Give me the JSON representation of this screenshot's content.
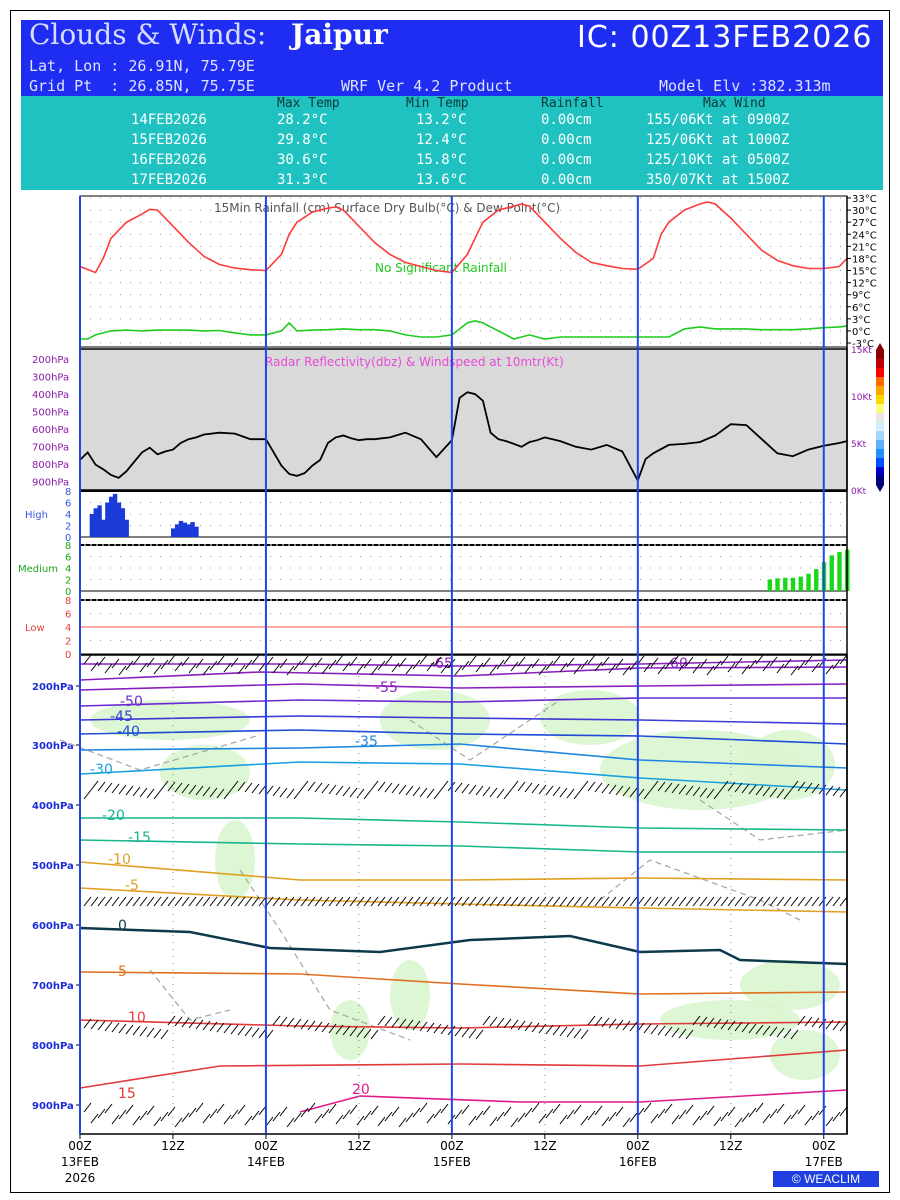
{
  "header": {
    "title": "Clouds & Winds:",
    "city": "Jaipur",
    "ic": "IC: 00Z13FEB2026",
    "latlon": "Lat, Lon : 26.91N, 75.79E",
    "gridpt": "Grid Pt  : 26.85N, 75.75E",
    "product": "WRF Ver 4.2 Product",
    "elevation": "Model Elv :382.313m"
  },
  "summary": {
    "columns": [
      "Max Temp",
      "Min Temp",
      "Rainfall",
      "Max Wind"
    ],
    "rows": [
      {
        "date": "14FEB2026",
        "max_temp": "28.2°C",
        "min_temp": "13.2°C",
        "rain": "0.00cm",
        "wind": "155/06Kt at 0900Z"
      },
      {
        "date": "15FEB2026",
        "max_temp": "29.8°C",
        "min_temp": "12.4°C",
        "rain": "0.00cm",
        "wind": "125/06Kt at 1000Z"
      },
      {
        "date": "16FEB2026",
        "max_temp": "30.6°C",
        "min_temp": "15.8°C",
        "rain": "0.00cm",
        "wind": "125/10Kt at 0500Z"
      },
      {
        "date": "17FEB2026",
        "max_temp": "31.3°C",
        "min_temp": "13.6°C",
        "rain": "0.00cm",
        "wind": "350/07Kt at 1500Z"
      }
    ]
  },
  "colors": {
    "header_bg": "#1f2cf2",
    "table_bg": "#1fc2c0",
    "temp_line": "#ff3b3b",
    "dew_line": "#1ecc1e",
    "radar_bg": "#d9d9d9",
    "cloud_bar_high": "#1b3bd9",
    "cloud_bar_med": "#18d818",
    "day_line": "#2244ee",
    "pressure_label": "#1c2bd9"
  },
  "chart_data": [
    {
      "type": "line",
      "panel": "surface",
      "legend_text": "15Min Rainfall (cm)    Surface Dry Bulb(°C)  &  Dew Point(°C)",
      "annotation": "No Significant Rainfall",
      "yticks": [
        "33°C",
        "30°C",
        "27°C",
        "24°C",
        "21°C",
        "18°C",
        "15°C",
        "12°C",
        "9°C",
        "6°C",
        "3°C",
        "0°C",
        "-3°C"
      ],
      "ylim": [
        -3,
        33
      ],
      "xlim_hours": [
        0,
        99
      ],
      "series": [
        {
          "name": "Surface Dry Bulb(°C)",
          "x": [
            0,
            2,
            3,
            4,
            6,
            8,
            9,
            10,
            12,
            14,
            16,
            18,
            20,
            22,
            24,
            26,
            27,
            28,
            30,
            32,
            33,
            34,
            36,
            38,
            40,
            42,
            44,
            46,
            48,
            50,
            51,
            52,
            54,
            56,
            57,
            58,
            60,
            62,
            64,
            66,
            68,
            70,
            72,
            74,
            75,
            76,
            78,
            80,
            81,
            82,
            84,
            86,
            88,
            90,
            92,
            94,
            96,
            98,
            99
          ],
          "y": [
            16,
            14.5,
            18,
            23,
            27,
            29,
            30.2,
            30,
            26,
            22,
            18.5,
            16.5,
            15.6,
            15.2,
            15,
            19,
            24,
            27,
            29.5,
            30.5,
            30.8,
            30,
            26,
            22,
            19,
            17,
            16,
            15,
            14.5,
            19,
            23,
            27,
            30,
            31,
            31.5,
            31,
            27,
            23,
            19.5,
            17,
            16.2,
            15.5,
            15.3,
            18,
            24,
            27,
            30,
            31.5,
            32,
            31.5,
            28,
            24,
            20,
            17.5,
            16.2,
            15.5,
            15.5,
            16,
            18
          ]
        },
        {
          "name": "Dew Point(°C)",
          "x": [
            0,
            1,
            2,
            4,
            6,
            8,
            10,
            12,
            14,
            16,
            18,
            20,
            22,
            24,
            26,
            27,
            28,
            30,
            32,
            34,
            36,
            38,
            40,
            42,
            44,
            46,
            48,
            50,
            51,
            52,
            54,
            56,
            58,
            60,
            62,
            64,
            66,
            68,
            70,
            72,
            74,
            76,
            78,
            80,
            82,
            84,
            86,
            88,
            90,
            92,
            94,
            96,
            98,
            99
          ],
          "y": [
            -2,
            -2,
            -1,
            0,
            0.2,
            0,
            0.2,
            0.2,
            0.2,
            0,
            0.1,
            -0.5,
            -1,
            -1,
            0,
            2,
            0,
            0.2,
            0.3,
            0.5,
            0.3,
            0.3,
            0,
            -1,
            -1.5,
            -1.5,
            -1,
            2,
            2.5,
            2,
            0,
            -2,
            -1,
            -2,
            -1.5,
            -1.5,
            -1.5,
            -1.5,
            -1.5,
            -1.5,
            -1.5,
            -1.5,
            0.5,
            1,
            0.5,
            0.5,
            0.5,
            0.3,
            0.3,
            0.3,
            0.5,
            0.8,
            1,
            1.2
          ]
        }
      ]
    },
    {
      "type": "line",
      "panel": "radar-wind",
      "label": "Radar Reflectivity(dbz) & Windspeed at 10mtr(Kt)",
      "pressure_ticks": [
        "200hPa",
        "300hPa",
        "400hPa",
        "500hPa",
        "600hPa",
        "700hPa",
        "800hPa",
        "900hPa"
      ],
      "right_ticks": [
        "15Kt",
        "10Kt",
        "5Kt",
        "0Kt"
      ],
      "ylim": [
        0,
        15
      ],
      "series": [
        {
          "name": "Windspeed at 10mtr(Kt)",
          "x": [
            0,
            1,
            2,
            3,
            4,
            5,
            6,
            7,
            8,
            9,
            10,
            11,
            12,
            13,
            14,
            15,
            16,
            18,
            20,
            22,
            24,
            26,
            27,
            28,
            29,
            30,
            31,
            32,
            33,
            34,
            35,
            36,
            37,
            38,
            40,
            42,
            44,
            46,
            48,
            49,
            50,
            51,
            52,
            53,
            54,
            55,
            56,
            57,
            58,
            59,
            60,
            62,
            64,
            66,
            68,
            70,
            72,
            73,
            74,
            76,
            78,
            80,
            82,
            84,
            86,
            88,
            90,
            92,
            94,
            96,
            98,
            99
          ],
          "y": [
            3.2,
            4,
            2.7,
            2.2,
            1.6,
            1.3,
            2,
            3,
            4,
            4.5,
            3.8,
            4.1,
            4.3,
            5,
            5.4,
            5.6,
            5.9,
            6.1,
            6,
            5.4,
            5.4,
            2.6,
            1.7,
            1.5,
            1.8,
            2.6,
            3.2,
            5,
            5.6,
            5.8,
            5.5,
            5.3,
            5.4,
            5.4,
            5.6,
            6.1,
            5.4,
            3.5,
            5.3,
            9.8,
            10.4,
            10.2,
            9.5,
            6.1,
            5.4,
            5.2,
            4.9,
            4.6,
            5.1,
            5.3,
            5.6,
            5.2,
            4.6,
            4.3,
            4.8,
            4.1,
            1,
            3.3,
            3.9,
            4.8,
            4.9,
            5.1,
            5.8,
            7,
            6.9,
            5.4,
            3.9,
            3.6,
            4.3,
            4.7,
            5,
            5.2
          ]
        }
      ]
    },
    {
      "type": "bar",
      "panel": "cloud-cover",
      "layers": [
        "High",
        "Medium",
        "Low"
      ],
      "yticks": [
        "0",
        "2",
        "4",
        "6",
        "8"
      ],
      "high": {
        "x": [
          1.5,
          2,
          2.5,
          3,
          3.5,
          4,
          4.5,
          5,
          5.5,
          6,
          12,
          12.5,
          13,
          13.5,
          14,
          14.5,
          15
        ],
        "y": [
          4,
          5,
          5.5,
          3,
          6,
          7,
          7.5,
          6,
          5,
          3,
          1.5,
          2.2,
          2.8,
          2.5,
          2.2,
          2.6,
          1.8
        ]
      },
      "medium": {
        "x": [
          89,
          90,
          91,
          92,
          93,
          94,
          95,
          96,
          97,
          98,
          99
        ],
        "y": [
          2,
          2.2,
          2.3,
          2.3,
          2.5,
          3,
          3.8,
          5,
          6.2,
          6.8,
          7.2
        ]
      },
      "low": {
        "x": [],
        "y": []
      }
    },
    {
      "type": "contour",
      "panel": "cross-section",
      "ylabel_ticks": [
        "200hPa",
        "300hPa",
        "400hPa",
        "500hPa",
        "600hPa",
        "700hPa",
        "800hPa",
        "900hPa"
      ],
      "x_ticks": [
        "00Z",
        "12Z",
        "00Z",
        "12Z",
        "00Z",
        "12Z",
        "00Z",
        "12Z",
        "00Z"
      ],
      "date_ticks": [
        "13FEB",
        "14FEB",
        "15FEB",
        "16FEB",
        "17FEB"
      ],
      "year": "2026",
      "temperature_contours_degC": [
        -65,
        -60,
        -55,
        -50,
        -45,
        -40,
        -35,
        -30,
        -20,
        -15,
        -10,
        -5,
        0,
        5,
        10,
        15,
        20
      ],
      "humidity_contours": [
        10,
        30,
        50
      ],
      "copyright": "© WEACLIM"
    }
  ]
}
